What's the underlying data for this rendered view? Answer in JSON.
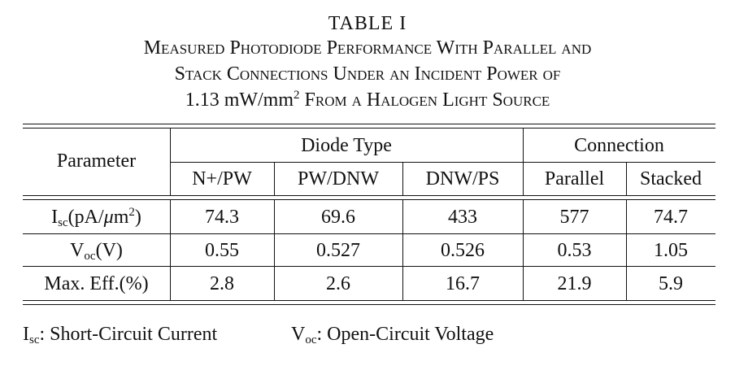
{
  "caption": {
    "number": "TABLE I",
    "line1": "Measured Photodiode Performance With Parallel and",
    "line2": "Stack Connections Under an Incident Power of",
    "line3_value": "1.13 mW/mm",
    "line3_exp": "2",
    "line3_rest": " From a Halogen Light Source"
  },
  "table": {
    "param_header": "Parameter",
    "group_diode": "Diode Type",
    "group_connection": "Connection",
    "columns": [
      "N+/PW",
      "PW/DNW",
      "DNW/PS",
      "Parallel",
      "Stacked"
    ],
    "rows": [
      {
        "label_main": "I",
        "label_sub": "sc",
        "label_mid": "(pA/",
        "label_mu": "μ",
        "label_unit": "m",
        "label_sup": "2",
        "label_close": ")",
        "values": [
          "74.3",
          "69.6",
          "433",
          "577",
          "74.7"
        ]
      },
      {
        "label_main": "V",
        "label_sub": "oc",
        "label_rest": "(V)",
        "values": [
          "0.55",
          "0.527",
          "0.526",
          "0.53",
          "1.05"
        ]
      },
      {
        "label_main": "Max. Eff.(%)",
        "values": [
          "2.8",
          "2.6",
          "16.7",
          "21.9",
          "5.9"
        ]
      }
    ]
  },
  "notes": {
    "isc_main": "I",
    "isc_sub": "sc",
    "isc_text": ": Short-Circuit Current",
    "voc_main": "V",
    "voc_sub": "oc",
    "voc_text": ": Open-Circuit Voltage"
  }
}
